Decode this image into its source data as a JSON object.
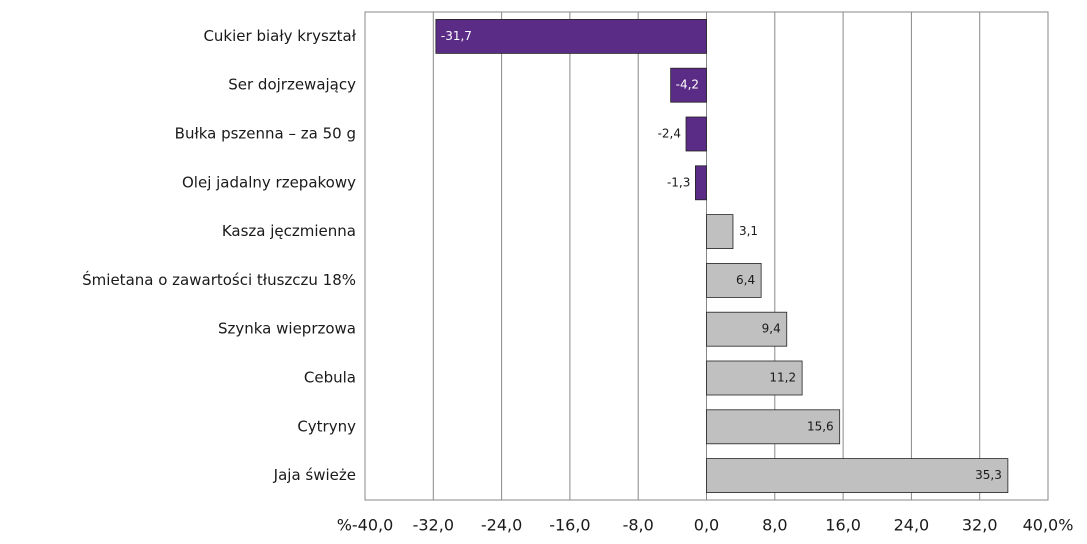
{
  "chart_data": {
    "type": "hbar",
    "categories": [
      "Cukier biały kryształ",
      "Ser dojrzewający",
      "Bułka pszenna – za 50 g",
      "Olej jadalny rzepakowy",
      "Kasza jęczmienna",
      "Śmietana o zawartości tłuszczu 18%",
      "Szynka wieprzowa",
      "Cebula",
      "Cytryny",
      "Jaja świeże"
    ],
    "values": [
      -31.7,
      -4.2,
      -2.4,
      -1.3,
      3.1,
      6.4,
      9.4,
      11.2,
      15.6,
      35.3
    ],
    "value_labels": [
      "-31,7",
      "-4,2",
      "-2,4",
      "-1,3",
      "3,1",
      "6,4",
      "9,4",
      "11,2",
      "15,6",
      "35,3"
    ],
    "colors": [
      "#5b2c86",
      "#5b2c86",
      "#5b2c86",
      "#5b2c86",
      "#c0c0c0",
      "#c0c0c0",
      "#c0c0c0",
      "#c0c0c0",
      "#c0c0c0",
      "#c0c0c0"
    ],
    "xlim": [
      -40,
      40
    ],
    "xticks": [
      {
        "value": -40,
        "label": "%-40,0"
      },
      {
        "value": -32,
        "label": "-32,0"
      },
      {
        "value": -24,
        "label": "-24,0"
      },
      {
        "value": -16,
        "label": "-16,0"
      },
      {
        "value": -8,
        "label": "-8,0"
      },
      {
        "value": 0,
        "label": "0,0"
      },
      {
        "value": 8,
        "label": "8,0"
      },
      {
        "value": 16,
        "label": "16,0"
      },
      {
        "value": 24,
        "label": "24,0"
      },
      {
        "value": 32,
        "label": "32,0"
      },
      {
        "value": 40,
        "label": "40,0%"
      }
    ],
    "grid": true
  }
}
